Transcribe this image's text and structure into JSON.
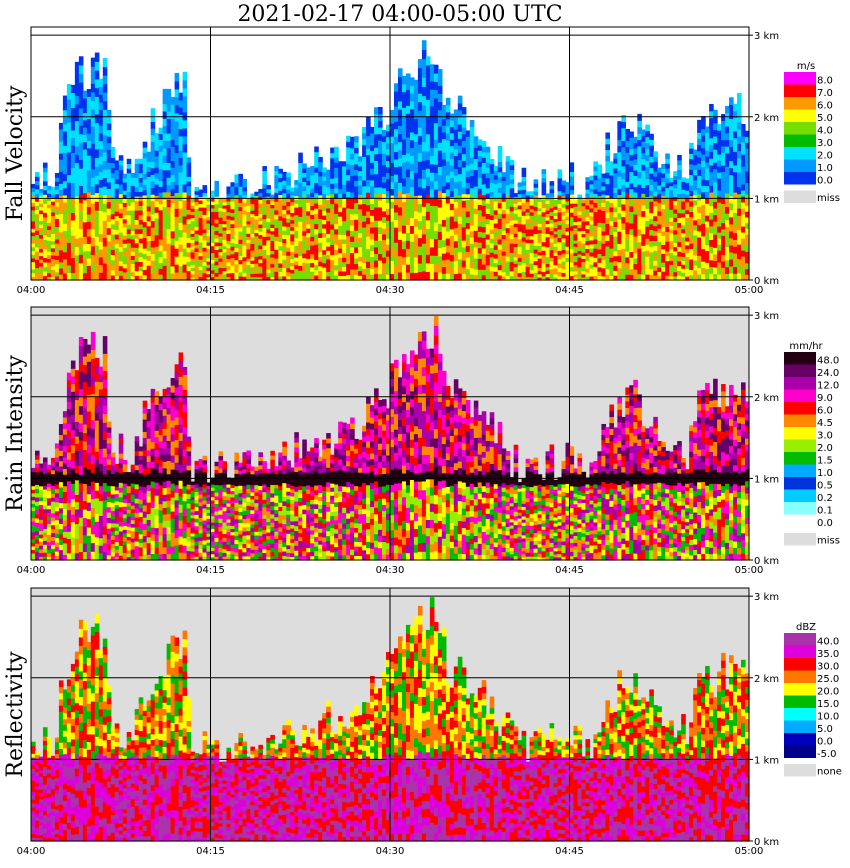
{
  "title": "2021-02-17   04:00-05:00 UTC",
  "time_ticks": [
    "04:00",
    "04:15",
    "04:30",
    "04:45",
    "05:00"
  ],
  "height_ticks": [
    "0 km",
    "1 km",
    "2 km",
    "3 km"
  ],
  "chart_data": [
    {
      "type": "heatmap",
      "ylabel": "Fall Velocity",
      "unit": "m/s",
      "x_range": [
        "04:00",
        "05:00"
      ],
      "y_range_km": [
        0,
        3.1
      ],
      "missing_label": "miss",
      "legend": [
        {
          "label": "8.0",
          "color": "#ff00ff"
        },
        {
          "label": "7.0",
          "color": "#ff0000"
        },
        {
          "label": "6.0",
          "color": "#ff9900"
        },
        {
          "label": "5.0",
          "color": "#ffff00"
        },
        {
          "label": "4.0",
          "color": "#77dd00"
        },
        {
          "label": "3.0",
          "color": "#00bb00"
        },
        {
          "label": "2.0",
          "color": "#00e0ff"
        },
        {
          "label": "1.0",
          "color": "#0099ff"
        },
        {
          "label": "0.0",
          "color": "#0033ee"
        }
      ],
      "miss_color": "#dddddd"
    },
    {
      "type": "heatmap",
      "ylabel": "Rain Intensity",
      "unit": "mm/hr",
      "x_range": [
        "04:00",
        "05:00"
      ],
      "y_range_km": [
        0,
        3.1
      ],
      "missing_label": "miss",
      "legend": [
        {
          "label": "48.0",
          "color": "#220011"
        },
        {
          "label": "24.0",
          "color": "#660066"
        },
        {
          "label": "12.0",
          "color": "#aa00aa"
        },
        {
          "label": "9.0",
          "color": "#ff00cc"
        },
        {
          "label": "6.0",
          "color": "#ff0000"
        },
        {
          "label": "4.5",
          "color": "#ff8800"
        },
        {
          "label": "3.0",
          "color": "#ffff00"
        },
        {
          "label": "2.0",
          "color": "#99ee00"
        },
        {
          "label": "1.5",
          "color": "#00bb00"
        },
        {
          "label": "1.0",
          "color": "#00aaff"
        },
        {
          "label": "0.5",
          "color": "#0033dd"
        },
        {
          "label": "0.2",
          "color": "#00ccff"
        },
        {
          "label": "0.1",
          "color": "#88ffff"
        },
        {
          "label": "0.0",
          "color": "#ffffff"
        }
      ],
      "miss_color": "#dddddd"
    },
    {
      "type": "heatmap",
      "ylabel": "Reflectivity",
      "unit": "dBZ",
      "x_range": [
        "04:00",
        "05:00"
      ],
      "y_range_km": [
        0,
        3.1
      ],
      "missing_label": "none",
      "legend": [
        {
          "label": "40.0",
          "color": "#aa33aa"
        },
        {
          "label": "35.0",
          "color": "#dd00dd"
        },
        {
          "label": "30.0",
          "color": "#ff0000"
        },
        {
          "label": "25.0",
          "color": "#ff7700"
        },
        {
          "label": "20.0",
          "color": "#ffff00"
        },
        {
          "label": "15.0",
          "color": "#00bb00"
        },
        {
          "label": "10.0",
          "color": "#00ffff"
        },
        {
          "label": "5.0",
          "color": "#00aaff"
        },
        {
          "label": "0.0",
          "color": "#0000bb"
        },
        {
          "label": "-5.0",
          "color": "#000088"
        }
      ],
      "miss_color": "#dddddd"
    }
  ]
}
